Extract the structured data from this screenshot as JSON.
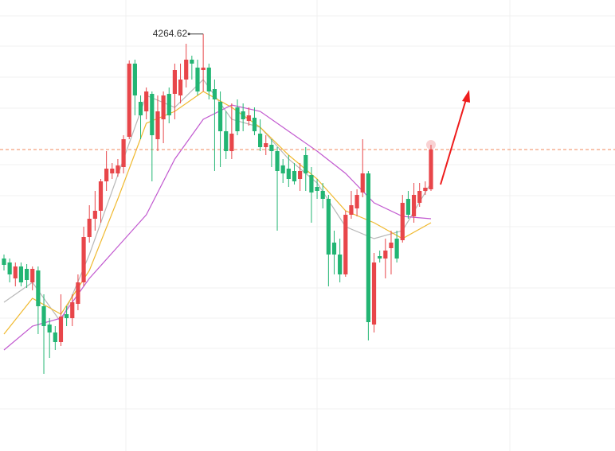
{
  "chart_data": {
    "type": "candlestick",
    "ylim": [
      4002.5,
      4286
    ],
    "up_color": "#e8464a",
    "down_color": "#22b573",
    "candles": {
      "open": [
        4123.5,
        4121,
        4111,
        4118.5,
        4117,
        4108.5,
        4116,
        4093.5,
        4082,
        4077,
        4071,
        4088.5,
        4086,
        4095,
        4108.5,
        4137,
        4148.5,
        4153.5,
        4172,
        4177,
        4177,
        4181,
        4200,
        4246,
        4222,
        4216,
        4227,
        4198.5,
        4211,
        4227,
        4227,
        4226,
        4236,
        4248.5,
        4243.5,
        4242,
        4243.5,
        4230,
        4222,
        4203.5,
        4191,
        4218.5,
        4216,
        4210,
        4212,
        4202,
        4193.5,
        4195,
        4191,
        4182,
        4180,
        4178.5,
        4173.5,
        4188.5,
        4176,
        4168.5,
        4166,
        4161,
        4133.5,
        4126,
        4113.5,
        4151,
        4155,
        4165,
        4177,
        4082,
        4125,
        4123.5,
        4130,
        4136,
        4135,
        4161,
        4150,
        4158.5,
        4166,
        4167
      ],
      "high": [
        4126,
        4123.5,
        4121,
        4121,
        4120,
        4118.5,
        4118.5,
        4101,
        4086,
        4081,
        4101,
        4093.5,
        4101,
        4113.5,
        4143.5,
        4157,
        4166,
        4173.5,
        4191,
        4183.5,
        4186,
        4201,
        4248,
        4248.5,
        4226,
        4231,
        4228.5,
        4226,
        4228.5,
        4231,
        4246,
        4246,
        4258.5,
        4251,
        4248.5,
        4264.62,
        4246,
        4236,
        4228.5,
        4216,
        4221,
        4223.5,
        4221,
        4218.5,
        4218.5,
        4211,
        4201,
        4198.5,
        4193.5,
        4186,
        4188.5,
        4183.5,
        4183.5,
        4193.5,
        4181,
        4173.5,
        4171,
        4163.5,
        4141,
        4136,
        4153.5,
        4166,
        4167,
        4198.5,
        4178.5,
        4127,
        4128.5,
        4136,
        4141,
        4141,
        4163.5,
        4166,
        4171,
        4171,
        4172,
        4195
      ],
      "low": [
        4116,
        4108.5,
        4106,
        4106,
        4105,
        4103.5,
        4076,
        4051,
        4061,
        4066,
        4068.5,
        4081,
        4081,
        4091,
        4106,
        4133.5,
        4141,
        4146,
        4166,
        4173.5,
        4175,
        4177,
        4198.5,
        4213.5,
        4198.5,
        4211,
        4172,
        4191,
        4196,
        4208.5,
        4211,
        4221,
        4231,
        4236,
        4226,
        4228.5,
        4223.5,
        4178.5,
        4181,
        4186,
        4186,
        4201,
        4203.5,
        4207,
        4201,
        4191,
        4188.5,
        4181,
        4141,
        4171,
        4168.5,
        4170,
        4166,
        4166,
        4146,
        4161,
        4155,
        4106,
        4113.5,
        4108.5,
        4112,
        4148.5,
        4150,
        4162,
        4072,
        4077,
        4121,
        4111,
        4113.5,
        4121,
        4133.5,
        4148.5,
        4146,
        4156,
        4163.5,
        4166
      ],
      "close": [
        4119.5,
        4113.5,
        4118.5,
        4108.5,
        4110,
        4117,
        4093.5,
        4081,
        4077,
        4071,
        4087,
        4086,
        4096,
        4108.5,
        4137,
        4148.5,
        4153.5,
        4172,
        4180,
        4180,
        4182,
        4198.5,
        4246,
        4226,
        4213.5,
        4228.5,
        4201,
        4216,
        4226,
        4213.5,
        4242,
        4236,
        4248.5,
        4246,
        4228.5,
        4243.5,
        4228.5,
        4223.5,
        4203.5,
        4191,
        4202,
        4203.5,
        4211,
        4213.5,
        4203.5,
        4193.5,
        4196,
        4191,
        4178.5,
        4177,
        4173.5,
        4172,
        4178.5,
        4177,
        4165,
        4166,
        4161,
        4126,
        4126,
        4113.5,
        4151,
        4157,
        4163.5,
        4177,
        4083.5,
        4121,
        4123.5,
        4128.5,
        4133.5,
        4123.5,
        4158.5,
        4151,
        4163.5,
        4166,
        4168,
        4192
      ]
    },
    "series": [
      {
        "color": "#b8b8b8",
        "x": [
          0,
          5,
          10,
          15,
          20,
          25,
          30,
          35,
          40,
          45,
          50,
          55,
          60,
          65,
          70,
          75
        ],
        "values": [
          4096,
          4108.5,
          4083.5,
          4126,
          4176,
          4226,
          4218.5,
          4236,
          4211,
          4206,
          4186,
          4171,
          4143.5,
          4136,
          4141,
          4171
        ]
      },
      {
        "color": "#f0b92e",
        "x": [
          0,
          5,
          10,
          15,
          20,
          25,
          30,
          35,
          40,
          45,
          50,
          55,
          60,
          65,
          70,
          75
        ],
        "values": [
          4076,
          4098.5,
          4088.5,
          4116,
          4161,
          4208.5,
          4216,
          4228.5,
          4218.5,
          4206,
          4188.5,
          4173.5,
          4153.5,
          4146,
          4136,
          4146
        ]
      },
      {
        "color": "#c25ad0",
        "x": [
          0,
          5,
          10,
          15,
          20,
          25,
          30,
          35,
          40,
          45,
          50,
          55,
          60,
          65,
          70,
          75
        ],
        "values": [
          4066,
          4081,
          4086,
          4111,
          4131,
          4151,
          4186,
          4211,
          4220,
          4216,
          4203.5,
          4191,
          4177,
          4158.5,
          4150,
          4148.5
        ]
      }
    ]
  }
}
